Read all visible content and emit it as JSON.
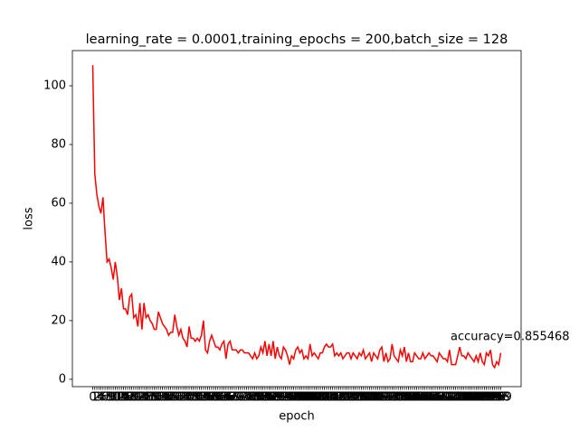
{
  "chart_data": {
    "type": "line",
    "title": "learning_rate = 0.0001,training_epochs = 200,batch_size = 128",
    "x_label": "epoch",
    "y_label": "loss",
    "annotation": "accuracy=0.855468",
    "categories": [
      0,
      1,
      2,
      3,
      4,
      5,
      6,
      7,
      8,
      9,
      10,
      11,
      12,
      13,
      14,
      15,
      16,
      17,
      18,
      19,
      20,
      21,
      22,
      23,
      24,
      25,
      26,
      27,
      28,
      29,
      30,
      31,
      32,
      33,
      34,
      35,
      36,
      37,
      38,
      39,
      40,
      41,
      42,
      43,
      44,
      45,
      46,
      47,
      48,
      49,
      50,
      51,
      52,
      53,
      54,
      55,
      56,
      57,
      58,
      59,
      60,
      61,
      62,
      63,
      64,
      65,
      66,
      67,
      68,
      69,
      70,
      71,
      72,
      73,
      74,
      75,
      76,
      77,
      78,
      79,
      80,
      81,
      82,
      83,
      84,
      85,
      86,
      87,
      88,
      89,
      90,
      91,
      92,
      93,
      94,
      95,
      96,
      97,
      98,
      99,
      100,
      101,
      102,
      103,
      104,
      105,
      106,
      107,
      108,
      109,
      110,
      111,
      112,
      113,
      114,
      115,
      116,
      117,
      118,
      119,
      120,
      121,
      122,
      123,
      124,
      125,
      126,
      127,
      128,
      129,
      130,
      131,
      132,
      133,
      134,
      135,
      136,
      137,
      138,
      139,
      140,
      141,
      142,
      143,
      144,
      145,
      146,
      147,
      148,
      149,
      150,
      151,
      152,
      153,
      154,
      155,
      156,
      157,
      158,
      159,
      160,
      161,
      162,
      163,
      164,
      165,
      166,
      167,
      168,
      169,
      170,
      171,
      172,
      173,
      174,
      175,
      176,
      177,
      178,
      179,
      180,
      181,
      182,
      183,
      184,
      185,
      186,
      187,
      188,
      189,
      190,
      191,
      192,
      193,
      194,
      195,
      196,
      197,
      198,
      199
    ],
    "series": [
      {
        "name": "loss",
        "color": "#ff0000",
        "values": [
          107,
          70,
          63,
          59,
          56.5,
          62,
          50,
          40,
          41,
          38,
          34,
          40,
          35,
          27,
          31,
          24,
          24,
          22,
          28,
          29,
          21,
          22,
          18,
          26,
          17,
          26,
          21,
          22,
          20,
          19,
          17,
          17,
          23,
          21,
          19,
          18,
          17,
          15,
          16,
          16,
          22,
          18,
          15,
          17,
          14,
          13,
          11,
          18,
          14,
          14,
          13,
          14,
          13,
          15,
          20,
          10,
          9,
          13,
          15,
          13,
          11,
          11,
          10,
          12,
          13,
          7,
          12,
          13,
          10,
          10,
          10,
          9,
          10,
          10,
          9,
          9,
          9,
          8,
          7,
          9,
          7,
          8,
          11,
          9,
          13,
          8,
          12,
          8,
          13,
          7,
          11,
          8,
          7,
          11,
          10,
          8,
          5,
          8,
          7,
          10,
          11,
          9,
          10,
          7,
          8,
          7,
          12,
          8,
          9,
          8,
          7,
          9,
          9,
          11,
          12,
          11,
          11,
          12,
          8,
          9,
          8,
          9,
          7,
          8,
          9,
          9,
          7,
          9,
          8,
          7,
          9,
          8,
          10,
          7,
          8,
          9,
          6,
          9,
          8,
          7,
          10,
          11,
          6,
          9,
          6,
          7,
          12,
          8,
          7,
          6,
          10,
          8,
          11,
          6,
          9,
          6,
          6,
          9,
          8,
          7,
          7,
          9,
          7,
          8,
          9,
          8,
          8,
          7,
          6,
          9,
          8,
          7,
          7,
          6,
          10,
          5,
          5,
          5,
          8,
          11,
          8,
          8,
          7,
          9,
          8,
          7,
          6,
          8,
          6,
          9,
          6,
          5,
          9,
          8,
          10,
          5,
          4,
          6,
          5,
          9
        ]
      }
    ],
    "ylim": [
      -2.5,
      112
    ],
    "yticks": [
      0,
      20,
      40,
      60,
      80,
      100
    ]
  }
}
